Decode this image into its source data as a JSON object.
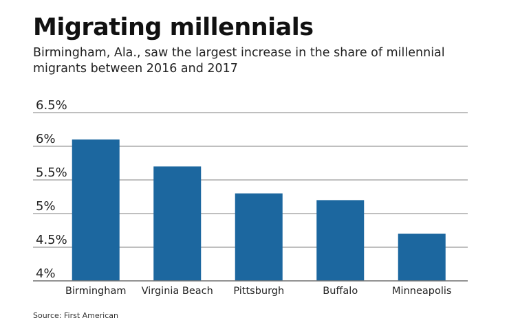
{
  "chart_data": {
    "type": "bar",
    "title": "Migrating millennials",
    "subtitle": "Birmingham, Ala., saw the largest increase in the share of millennial migrants between 2016 and 2017",
    "categories": [
      "Birmingham",
      "Virginia Beach",
      "Pittsburgh",
      "Buffalo",
      "Minneapolis"
    ],
    "values": [
      6.1,
      5.7,
      5.3,
      5.2,
      4.7
    ],
    "unit": "%",
    "ylim": [
      4,
      6.5
    ],
    "yticks": [
      4,
      4.5,
      5,
      5.5,
      6,
      6.5
    ],
    "ytick_labels": [
      "4%",
      "4.5%",
      "5%",
      "5.5%",
      "6%",
      "6.5%"
    ],
    "grid": true,
    "bar_color": "#1c679f",
    "grid_color": "#999999",
    "source": "Source: First American"
  }
}
